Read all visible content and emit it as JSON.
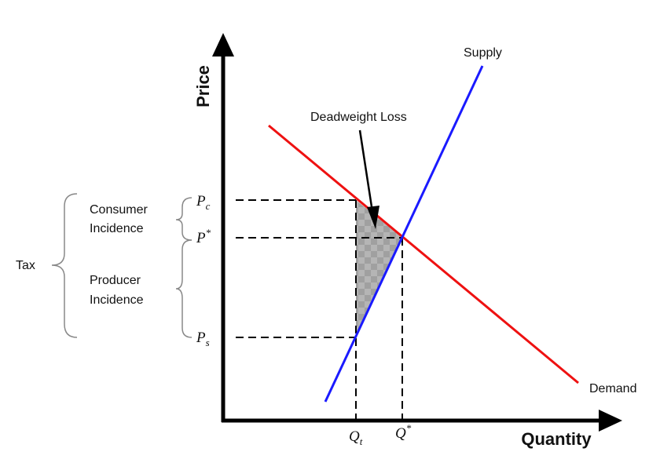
{
  "diagram": {
    "axes": {
      "y_label": "Price",
      "x_label": "Quantity"
    },
    "curves": {
      "supply_label": "Supply",
      "demand_label": "Demand"
    },
    "annotation": {
      "deadweight_loss_label": "Deadweight Loss"
    },
    "price_labels": {
      "pc": "P",
      "pc_sub": "c",
      "pstar": "P",
      "pstar_sup": "*",
      "ps": "P",
      "ps_sub": "s"
    },
    "quantity_labels": {
      "qt": "Q",
      "qt_sub": "t",
      "qstar": "Q",
      "qstar_sup": "*"
    },
    "braces": {
      "consumer_line1": "Consumer",
      "consumer_line2": "Incidence",
      "producer_line1": "Producer",
      "producer_line2": "Incidence",
      "tax_label": "Tax"
    },
    "colors": {
      "supply": "#1a1aff",
      "demand": "#ee1111",
      "axis": "#000000",
      "dwl_fill": "#9a9a9a"
    }
  }
}
